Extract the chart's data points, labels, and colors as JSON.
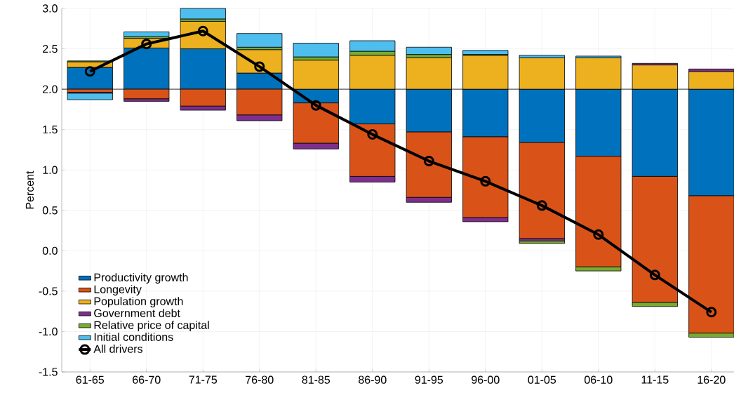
{
  "chart_data": {
    "type": "bar",
    "ylabel": "Percent",
    "categories": [
      "61-65",
      "66-70",
      "71-75",
      "76-80",
      "81-85",
      "86-90",
      "91-95",
      "96-00",
      "01-05",
      "06-10",
      "11-15",
      "16-20"
    ],
    "series": [
      {
        "name": "Productivity growth",
        "color": "#0072bd",
        "values": [
          0.27,
          0.51,
          0.5,
          0.2,
          -0.17,
          -0.43,
          -0.53,
          -0.59,
          -0.66,
          -0.83,
          -1.08,
          -1.32
        ],
        "base": [
          2.0,
          2.0,
          2.0,
          2.0,
          2.0,
          2.0,
          2.0,
          2.0,
          2.0,
          2.0,
          2.0,
          2.0
        ]
      },
      {
        "name": "Longevity",
        "color": "#d95319",
        "values": [
          -0.04,
          -0.12,
          -0.21,
          -0.32,
          -0.5,
          -0.65,
          -0.81,
          -1.0,
          -1.19,
          -1.37,
          -1.56,
          -1.7
        ],
        "base": [
          2.0,
          2.0,
          2.0,
          2.0,
          1.83,
          1.57,
          1.47,
          1.41,
          1.34,
          1.17,
          0.92,
          0.68
        ]
      },
      {
        "name": "Population growth",
        "color": "#edb120",
        "values": [
          0.07,
          0.12,
          0.34,
          0.29,
          0.36,
          0.42,
          0.39,
          0.42,
          0.39,
          0.39,
          0.3,
          0.22
        ],
        "base": [
          2.27,
          2.51,
          2.5,
          2.2,
          2.0,
          2.0,
          2.0,
          2.0,
          2.0,
          2.0,
          2.0,
          2.0
        ]
      },
      {
        "name": "Government debt",
        "color": "#7e2f8e",
        "values": [
          -0.01,
          -0.03,
          -0.05,
          -0.07,
          -0.07,
          -0.07,
          -0.06,
          -0.05,
          -0.03,
          null,
          0.02,
          0.03
        ],
        "base": [
          1.96,
          1.88,
          1.79,
          1.68,
          1.33,
          0.92,
          0.66,
          0.41,
          0.15,
          null,
          2.3,
          2.22
        ]
      },
      {
        "name": "Relative price of capital",
        "color": "#77ac30",
        "values": [
          0.01,
          0.02,
          0.03,
          0.03,
          0.04,
          0.05,
          0.04,
          0.01,
          -0.03,
          -0.05,
          -0.05,
          -0.05
        ],
        "base": [
          2.34,
          2.63,
          2.84,
          2.49,
          2.36,
          2.42,
          2.39,
          2.42,
          0.12,
          -0.2,
          -0.64,
          -1.02
        ]
      },
      {
        "name": "Initial conditions",
        "color": "#4dbeee",
        "values": [
          -0.08,
          0.06,
          0.13,
          0.17,
          0.17,
          0.13,
          0.09,
          0.05,
          0.03,
          0.02,
          null,
          null
        ],
        "base": [
          1.95,
          2.65,
          2.87,
          2.52,
          2.4,
          2.47,
          2.43,
          2.43,
          2.39,
          2.39,
          null,
          null
        ]
      },
      {
        "name": "All drivers",
        "type": "line",
        "marker": "circle",
        "color": "#000000",
        "values": [
          2.22,
          2.56,
          2.72,
          2.28,
          1.8,
          1.44,
          1.11,
          0.86,
          0.56,
          0.2,
          -0.3,
          -0.76
        ]
      }
    ],
    "ylim": [
      -1.5,
      3.0
    ],
    "yticks": [
      {
        "value": -1.5,
        "label": "-1.5"
      },
      {
        "value": -1.0,
        "label": "-1.0"
      },
      {
        "value": -0.5,
        "label": "-0.5"
      },
      {
        "value": 0,
        "label": "0.0"
      },
      {
        "value": 0.5,
        "label": "0.5"
      },
      {
        "value": 1.0,
        "label": "1.0"
      },
      {
        "value": 1.5,
        "label": "1.5"
      },
      {
        "value": 2.0,
        "label": "2.0"
      },
      {
        "value": 2.5,
        "label": "2.5"
      },
      {
        "value": 3.0,
        "label": "3.0"
      }
    ],
    "ref_lines": [
      {
        "axis": "y",
        "value": 2.0,
        "color": "#000000"
      }
    ],
    "grid": true,
    "legend": "bottom left"
  }
}
